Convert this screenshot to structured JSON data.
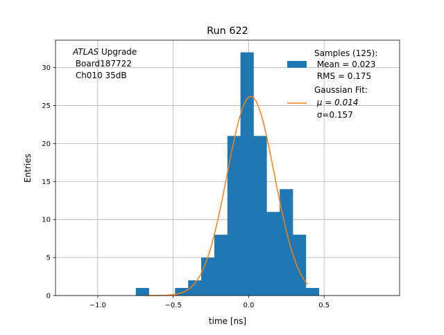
{
  "chart_data": {
    "type": "bar",
    "title": "Run 622",
    "xlabel": "time [ns]",
    "ylabel": "Entries",
    "xlim": [
      -1.28,
      1.0
    ],
    "ylim": [
      0,
      33.6
    ],
    "xticks": [
      -1.0,
      -0.5,
      0.0,
      0.5
    ],
    "xtick_labels": [
      "−1.0",
      "−0.5",
      "0.0",
      "0.5"
    ],
    "yticks": [
      0,
      5,
      10,
      15,
      20,
      25,
      30
    ],
    "ytick_labels": [
      "0",
      "5",
      "10",
      "15",
      "20",
      "25",
      "30"
    ],
    "grid": true,
    "bin_edges_start": -0.748,
    "bin_width": 0.0867,
    "counts": [
      1,
      0,
      0,
      1,
      2,
      5,
      8,
      21,
      32,
      21,
      11,
      14,
      8,
      1
    ],
    "histogram_color": "#1f77b4",
    "fit": {
      "type": "gaussian",
      "amplitude": 26.2,
      "mu": 0.014,
      "sigma": 0.157,
      "x_range": [
        -0.68,
        0.39
      ],
      "color": "#ff7f0e"
    },
    "annotation": {
      "italic": "ATLAS",
      "line1_rest": " Upgrade",
      "line2": " Board187722",
      "line3": " Ch010 35dB"
    },
    "legend": {
      "placement": "top-right",
      "hist_lines": [
        "Samples (125):",
        " Mean = 0.023",
        " RMS = 0.175"
      ],
      "fit_lines": [
        "Gaussian Fit:",
        " μ = 0.014",
        " σ=0.157"
      ]
    }
  }
}
